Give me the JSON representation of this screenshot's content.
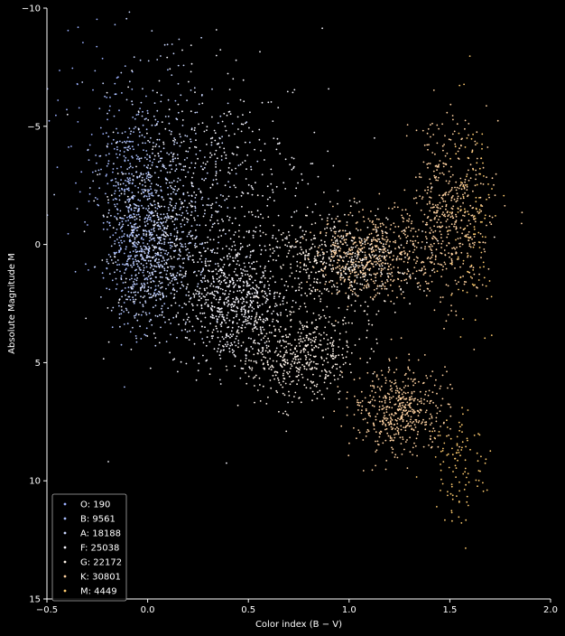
{
  "chart_data": {
    "type": "scatter",
    "title": "",
    "xlabel": "Color index (B − V)",
    "ylabel": "Absolute Magnitude M",
    "xlim": [
      -0.5,
      2.0
    ],
    "ylim": [
      15,
      -10
    ],
    "y_inverted": true,
    "xticks": [
      "−0.5",
      "0.0",
      "0.5",
      "1.0",
      "1.5",
      "2.0"
    ],
    "yticks": [
      "−10",
      "−5",
      "0",
      "5",
      "10",
      "15"
    ],
    "xtick_values": [
      -0.5,
      0.0,
      0.5,
      1.0,
      1.5,
      2.0
    ],
    "ytick_values": [
      -10,
      -5,
      0,
      5,
      10,
      15
    ],
    "grid": false,
    "background": "#000000",
    "legend_position": "lower-left",
    "series": [
      {
        "name": "O: 190",
        "count": 190,
        "color": "#9bb0ff"
      },
      {
        "name": "B: 9561",
        "count": 9561,
        "color": "#aabfff"
      },
      {
        "name": "A: 18188",
        "count": 18188,
        "color": "#cad7ff"
      },
      {
        "name": "F: 25038",
        "count": 25038,
        "color": "#f8f7ff"
      },
      {
        "name": "G: 22172",
        "count": 22172,
        "color": "#fff4ea"
      },
      {
        "name": "K: 30801",
        "count": 30801,
        "color": "#ffd2a1"
      },
      {
        "name": "M: 4449",
        "count": 4449,
        "color": "#ffcc6f"
      }
    ],
    "regions": [
      {
        "series": "O: 190",
        "clusters": [
          {
            "x": -0.25,
            "y": -5.0,
            "sx": 0.12,
            "sy": 3.0
          }
        ]
      },
      {
        "series": "B: 9561",
        "clusters": [
          {
            "x": -0.08,
            "y": -1.5,
            "sx": 0.08,
            "sy": 2.3
          }
        ]
      },
      {
        "series": "A: 18188",
        "clusters": [
          {
            "x": 0.03,
            "y": 0.6,
            "sx": 0.1,
            "sy": 1.5
          },
          {
            "x": 0.1,
            "y": -2.5,
            "sx": 0.15,
            "sy": 2.5
          }
        ]
      },
      {
        "series": "F: 25038",
        "clusters": [
          {
            "x": 0.42,
            "y": 2.5,
            "sx": 0.12,
            "sy": 1.3
          },
          {
            "x": 0.3,
            "y": -1.5,
            "sx": 0.25,
            "sy": 3.0
          }
        ]
      },
      {
        "series": "G: 22172",
        "clusters": [
          {
            "x": 0.75,
            "y": 4.6,
            "sx": 0.15,
            "sy": 1.0
          },
          {
            "x": 0.95,
            "y": 0.6,
            "sx": 0.18,
            "sy": 1.0
          }
        ]
      },
      {
        "series": "K: 30801",
        "clusters": [
          {
            "x": 1.12,
            "y": 0.5,
            "sx": 0.15,
            "sy": 0.9
          },
          {
            "x": 1.25,
            "y": 7.0,
            "sx": 0.12,
            "sy": 0.9
          },
          {
            "x": 1.5,
            "y": -1.5,
            "sx": 0.1,
            "sy": 1.8
          }
        ]
      },
      {
        "series": "M: 4449",
        "clusters": [
          {
            "x": 1.55,
            "y": 9.5,
            "sx": 0.07,
            "sy": 1.3
          },
          {
            "x": 1.62,
            "y": -1.5,
            "sx": 0.06,
            "sy": 2.2
          }
        ]
      }
    ]
  }
}
